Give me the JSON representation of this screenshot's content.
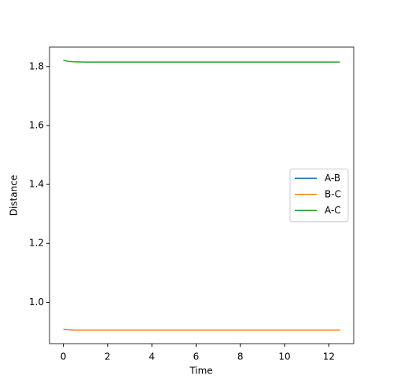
{
  "chart_data": {
    "type": "line",
    "x_label": "Time",
    "y_label": "Distance",
    "x": [
      0,
      0.25,
      0.5,
      1,
      2,
      4,
      6,
      8,
      10,
      12,
      12.5
    ],
    "series": [
      {
        "name": "A-B",
        "color": "#1f77b4",
        "values": [
          0.909,
          0.907,
          0.906,
          0.906,
          0.906,
          0.906,
          0.906,
          0.906,
          0.906,
          0.906,
          0.906
        ]
      },
      {
        "name": "B-C",
        "color": "#ff7f0e",
        "values": [
          0.909,
          0.907,
          0.906,
          0.906,
          0.906,
          0.906,
          0.906,
          0.906,
          0.906,
          0.906,
          0.906
        ]
      },
      {
        "name": "A-C",
        "color": "#2ca02c",
        "values": [
          1.821,
          1.817,
          1.816,
          1.815,
          1.815,
          1.815,
          1.815,
          1.815,
          1.815,
          1.815,
          1.815
        ]
      }
    ],
    "xlim": [
      -0.625,
      13.125
    ],
    "xticks": [
      0,
      2,
      4,
      6,
      8,
      10,
      12
    ],
    "ylim": [
      0.86,
      1.866
    ],
    "yticks": [
      {
        "value": 1,
        "label": "1.0"
      },
      1.2,
      1.4,
      1.6,
      1.8
    ],
    "grid": false,
    "legend": "center right"
  }
}
